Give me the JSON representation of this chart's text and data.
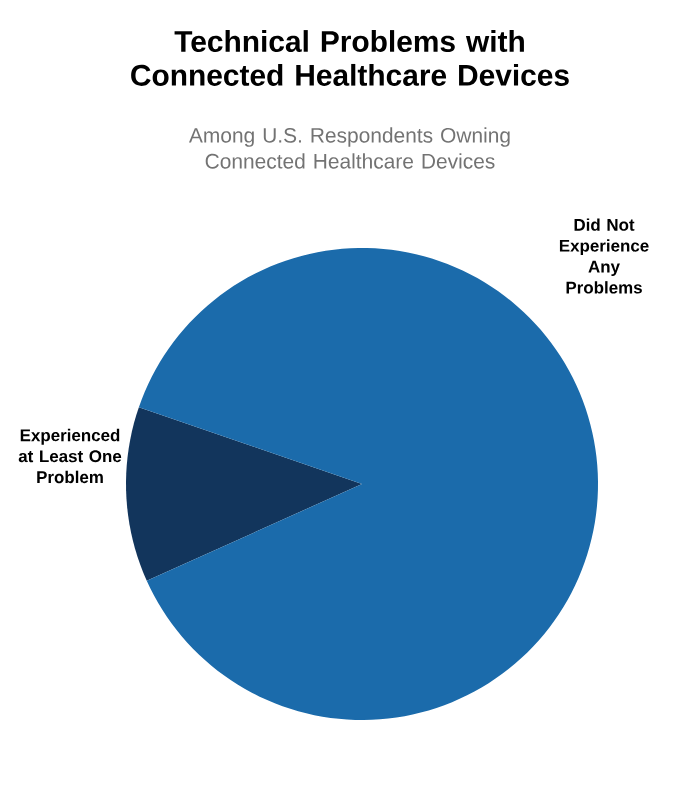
{
  "chart_data": {
    "type": "pie",
    "title": "Technical Problems with Connected Healthcare Devices",
    "subtitle": "Among U.S. Respondents Owning Connected Healthcare Devices",
    "categories": [
      "Experienced at Least One Problem",
      "Did Not Experience Any Problems"
    ],
    "values": [
      12,
      88
    ],
    "colors": [
      "#12355c",
      "#1b6bab"
    ]
  }
}
